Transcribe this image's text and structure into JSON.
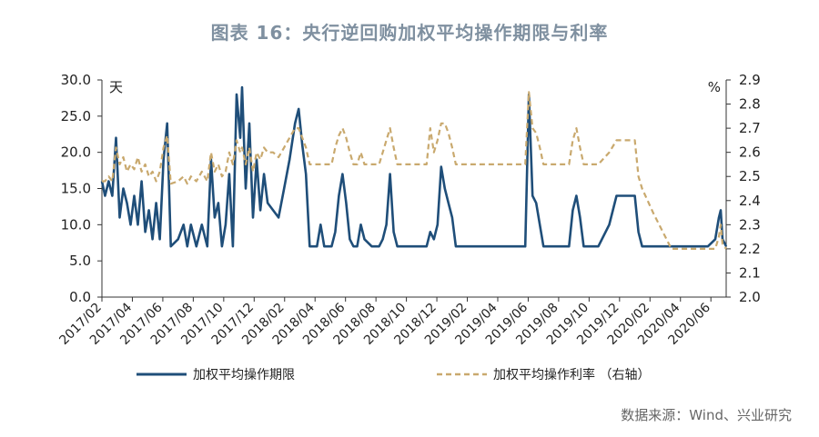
{
  "title": "图表 16：央行逆回购加权平均操作期限与利率",
  "source": "数据来源：Wind、兴业研究",
  "chart_data": {
    "type": "line",
    "left_axis": {
      "unit": "天",
      "ylim": [
        0,
        30
      ],
      "ticks": [
        "0.0",
        "5.0",
        "10.0",
        "15.0",
        "20.0",
        "25.0",
        "30.0"
      ]
    },
    "right_axis": {
      "unit": "%",
      "ylim": [
        2.0,
        2.9
      ],
      "ticks": [
        "2.0",
        "2.1",
        "2.2",
        "2.3",
        "2.4",
        "2.5",
        "2.6",
        "2.7",
        "2.8",
        "2.9"
      ]
    },
    "x_ticks": [
      "2017/02",
      "2017/04",
      "2017/06",
      "2017/08",
      "2017/10",
      "2017/12",
      "2018/02",
      "2018/04",
      "2018/06",
      "2018/08",
      "2018/10",
      "2018/12",
      "2019/02",
      "2019/04",
      "2019/06",
      "2019/08",
      "2019/10",
      "2019/12",
      "2020/02",
      "2020/04",
      "2020/06"
    ],
    "x_range": [
      2017.083,
      2020.5
    ],
    "series": [
      {
        "name": "加权平均操作期限",
        "axis": "left",
        "color": "#1f4e79",
        "points": [
          [
            2017.083,
            16
          ],
          [
            2017.1,
            14
          ],
          [
            2017.12,
            16
          ],
          [
            2017.14,
            14
          ],
          [
            2017.16,
            22
          ],
          [
            2017.18,
            11
          ],
          [
            2017.2,
            15
          ],
          [
            2017.22,
            13
          ],
          [
            2017.24,
            10
          ],
          [
            2017.26,
            14
          ],
          [
            2017.28,
            10
          ],
          [
            2017.3,
            16
          ],
          [
            2017.32,
            9
          ],
          [
            2017.34,
            12
          ],
          [
            2017.36,
            8
          ],
          [
            2017.38,
            13
          ],
          [
            2017.4,
            8
          ],
          [
            2017.42,
            19
          ],
          [
            2017.44,
            24
          ],
          [
            2017.46,
            7
          ],
          [
            2017.5,
            8
          ],
          [
            2017.53,
            10
          ],
          [
            2017.55,
            7
          ],
          [
            2017.57,
            10
          ],
          [
            2017.6,
            7
          ],
          [
            2017.63,
            10
          ],
          [
            2017.66,
            7
          ],
          [
            2017.68,
            19
          ],
          [
            2017.7,
            11
          ],
          [
            2017.72,
            13
          ],
          [
            2017.74,
            7
          ],
          [
            2017.76,
            10
          ],
          [
            2017.78,
            17
          ],
          [
            2017.8,
            7
          ],
          [
            2017.82,
            28
          ],
          [
            2017.84,
            22
          ],
          [
            2017.85,
            29
          ],
          [
            2017.87,
            15
          ],
          [
            2017.89,
            24
          ],
          [
            2017.91,
            11
          ],
          [
            2017.93,
            19
          ],
          [
            2017.95,
            12
          ],
          [
            2017.97,
            17
          ],
          [
            2017.99,
            13
          ],
          [
            2018.02,
            12
          ],
          [
            2018.05,
            11
          ],
          [
            2018.08,
            15
          ],
          [
            2018.11,
            19
          ],
          [
            2018.14,
            24
          ],
          [
            2018.16,
            26
          ],
          [
            2018.18,
            21
          ],
          [
            2018.2,
            17
          ],
          [
            2018.22,
            7
          ],
          [
            2018.26,
            7
          ],
          [
            2018.28,
            10
          ],
          [
            2018.3,
            7
          ],
          [
            2018.34,
            7
          ],
          [
            2018.36,
            9
          ],
          [
            2018.38,
            14
          ],
          [
            2018.4,
            17
          ],
          [
            2018.42,
            13
          ],
          [
            2018.44,
            8
          ],
          [
            2018.46,
            7
          ],
          [
            2018.48,
            7
          ],
          [
            2018.5,
            10
          ],
          [
            2018.52,
            8
          ],
          [
            2018.56,
            7
          ],
          [
            2018.6,
            7
          ],
          [
            2018.62,
            8
          ],
          [
            2018.64,
            10
          ],
          [
            2018.66,
            17
          ],
          [
            2018.68,
            9
          ],
          [
            2018.7,
            7
          ],
          [
            2018.8,
            7
          ],
          [
            2018.86,
            7
          ],
          [
            2018.88,
            9
          ],
          [
            2018.9,
            8
          ],
          [
            2018.92,
            10
          ],
          [
            2018.94,
            18
          ],
          [
            2018.96,
            15
          ],
          [
            2018.98,
            13
          ],
          [
            2019.0,
            11
          ],
          [
            2019.02,
            7
          ],
          [
            2019.1,
            7
          ],
          [
            2019.3,
            7
          ],
          [
            2019.4,
            7
          ],
          [
            2019.42,
            28
          ],
          [
            2019.44,
            14
          ],
          [
            2019.46,
            13
          ],
          [
            2019.48,
            10
          ],
          [
            2019.5,
            7
          ],
          [
            2019.6,
            7
          ],
          [
            2019.64,
            7
          ],
          [
            2019.66,
            12
          ],
          [
            2019.68,
            14
          ],
          [
            2019.7,
            11
          ],
          [
            2019.72,
            7
          ],
          [
            2019.8,
            7
          ],
          [
            2019.86,
            10
          ],
          [
            2019.9,
            14
          ],
          [
            2019.95,
            14
          ],
          [
            2020.0,
            14
          ],
          [
            2020.02,
            9
          ],
          [
            2020.04,
            7
          ],
          [
            2020.1,
            7
          ],
          [
            2020.2,
            7
          ],
          [
            2020.3,
            7
          ],
          [
            2020.4,
            7
          ],
          [
            2020.44,
            8
          ],
          [
            2020.46,
            11
          ],
          [
            2020.47,
            12
          ],
          [
            2020.48,
            8
          ],
          [
            2020.5,
            7
          ]
        ]
      },
      {
        "name": "加权平均操作利率 （右轴）",
        "axis": "right",
        "color": "#c9a96e",
        "points": [
          [
            2017.083,
            2.48
          ],
          [
            2017.1,
            2.48
          ],
          [
            2017.12,
            2.5
          ],
          [
            2017.14,
            2.48
          ],
          [
            2017.16,
            2.62
          ],
          [
            2017.18,
            2.55
          ],
          [
            2017.2,
            2.58
          ],
          [
            2017.22,
            2.52
          ],
          [
            2017.24,
            2.55
          ],
          [
            2017.26,
            2.53
          ],
          [
            2017.28,
            2.58
          ],
          [
            2017.3,
            2.52
          ],
          [
            2017.32,
            2.55
          ],
          [
            2017.34,
            2.5
          ],
          [
            2017.36,
            2.52
          ],
          [
            2017.38,
            2.48
          ],
          [
            2017.4,
            2.52
          ],
          [
            2017.42,
            2.62
          ],
          [
            2017.44,
            2.67
          ],
          [
            2017.46,
            2.47
          ],
          [
            2017.5,
            2.48
          ],
          [
            2017.53,
            2.5
          ],
          [
            2017.55,
            2.47
          ],
          [
            2017.57,
            2.5
          ],
          [
            2017.6,
            2.48
          ],
          [
            2017.63,
            2.52
          ],
          [
            2017.66,
            2.48
          ],
          [
            2017.68,
            2.6
          ],
          [
            2017.7,
            2.52
          ],
          [
            2017.72,
            2.55
          ],
          [
            2017.74,
            2.5
          ],
          [
            2017.76,
            2.52
          ],
          [
            2017.78,
            2.6
          ],
          [
            2017.8,
            2.55
          ],
          [
            2017.82,
            2.65
          ],
          [
            2017.84,
            2.6
          ],
          [
            2017.85,
            2.62
          ],
          [
            2017.87,
            2.55
          ],
          [
            2017.89,
            2.62
          ],
          [
            2017.91,
            2.52
          ],
          [
            2017.93,
            2.6
          ],
          [
            2017.95,
            2.57
          ],
          [
            2017.97,
            2.62
          ],
          [
            2017.99,
            2.6
          ],
          [
            2018.02,
            2.6
          ],
          [
            2018.05,
            2.58
          ],
          [
            2018.08,
            2.62
          ],
          [
            2018.11,
            2.66
          ],
          [
            2018.14,
            2.7
          ],
          [
            2018.16,
            2.7
          ],
          [
            2018.18,
            2.66
          ],
          [
            2018.2,
            2.62
          ],
          [
            2018.22,
            2.55
          ],
          [
            2018.3,
            2.55
          ],
          [
            2018.34,
            2.55
          ],
          [
            2018.36,
            2.62
          ],
          [
            2018.38,
            2.67
          ],
          [
            2018.4,
            2.7
          ],
          [
            2018.42,
            2.66
          ],
          [
            2018.44,
            2.6
          ],
          [
            2018.46,
            2.55
          ],
          [
            2018.48,
            2.55
          ],
          [
            2018.5,
            2.6
          ],
          [
            2018.52,
            2.55
          ],
          [
            2018.6,
            2.55
          ],
          [
            2018.62,
            2.6
          ],
          [
            2018.64,
            2.65
          ],
          [
            2018.66,
            2.7
          ],
          [
            2018.68,
            2.62
          ],
          [
            2018.7,
            2.55
          ],
          [
            2018.8,
            2.55
          ],
          [
            2018.86,
            2.55
          ],
          [
            2018.88,
            2.7
          ],
          [
            2018.9,
            2.6
          ],
          [
            2018.92,
            2.65
          ],
          [
            2018.94,
            2.72
          ],
          [
            2018.96,
            2.72
          ],
          [
            2018.98,
            2.68
          ],
          [
            2019.0,
            2.62
          ],
          [
            2019.02,
            2.55
          ],
          [
            2019.1,
            2.55
          ],
          [
            2019.3,
            2.55
          ],
          [
            2019.4,
            2.55
          ],
          [
            2019.42,
            2.85
          ],
          [
            2019.44,
            2.7
          ],
          [
            2019.46,
            2.68
          ],
          [
            2019.48,
            2.62
          ],
          [
            2019.5,
            2.55
          ],
          [
            2019.6,
            2.55
          ],
          [
            2019.64,
            2.55
          ],
          [
            2019.66,
            2.65
          ],
          [
            2019.68,
            2.7
          ],
          [
            2019.7,
            2.62
          ],
          [
            2019.72,
            2.55
          ],
          [
            2019.8,
            2.55
          ],
          [
            2019.86,
            2.6
          ],
          [
            2019.9,
            2.65
          ],
          [
            2019.95,
            2.65
          ],
          [
            2020.0,
            2.65
          ],
          [
            2020.02,
            2.5
          ],
          [
            2020.04,
            2.45
          ],
          [
            2020.1,
            2.35
          ],
          [
            2020.2,
            2.2
          ],
          [
            2020.3,
            2.2
          ],
          [
            2020.4,
            2.2
          ],
          [
            2020.44,
            2.2
          ],
          [
            2020.46,
            2.25
          ],
          [
            2020.47,
            2.3
          ],
          [
            2020.48,
            2.22
          ],
          [
            2020.5,
            2.2
          ]
        ]
      }
    ],
    "legend_placement": "bottom",
    "grid": false
  }
}
